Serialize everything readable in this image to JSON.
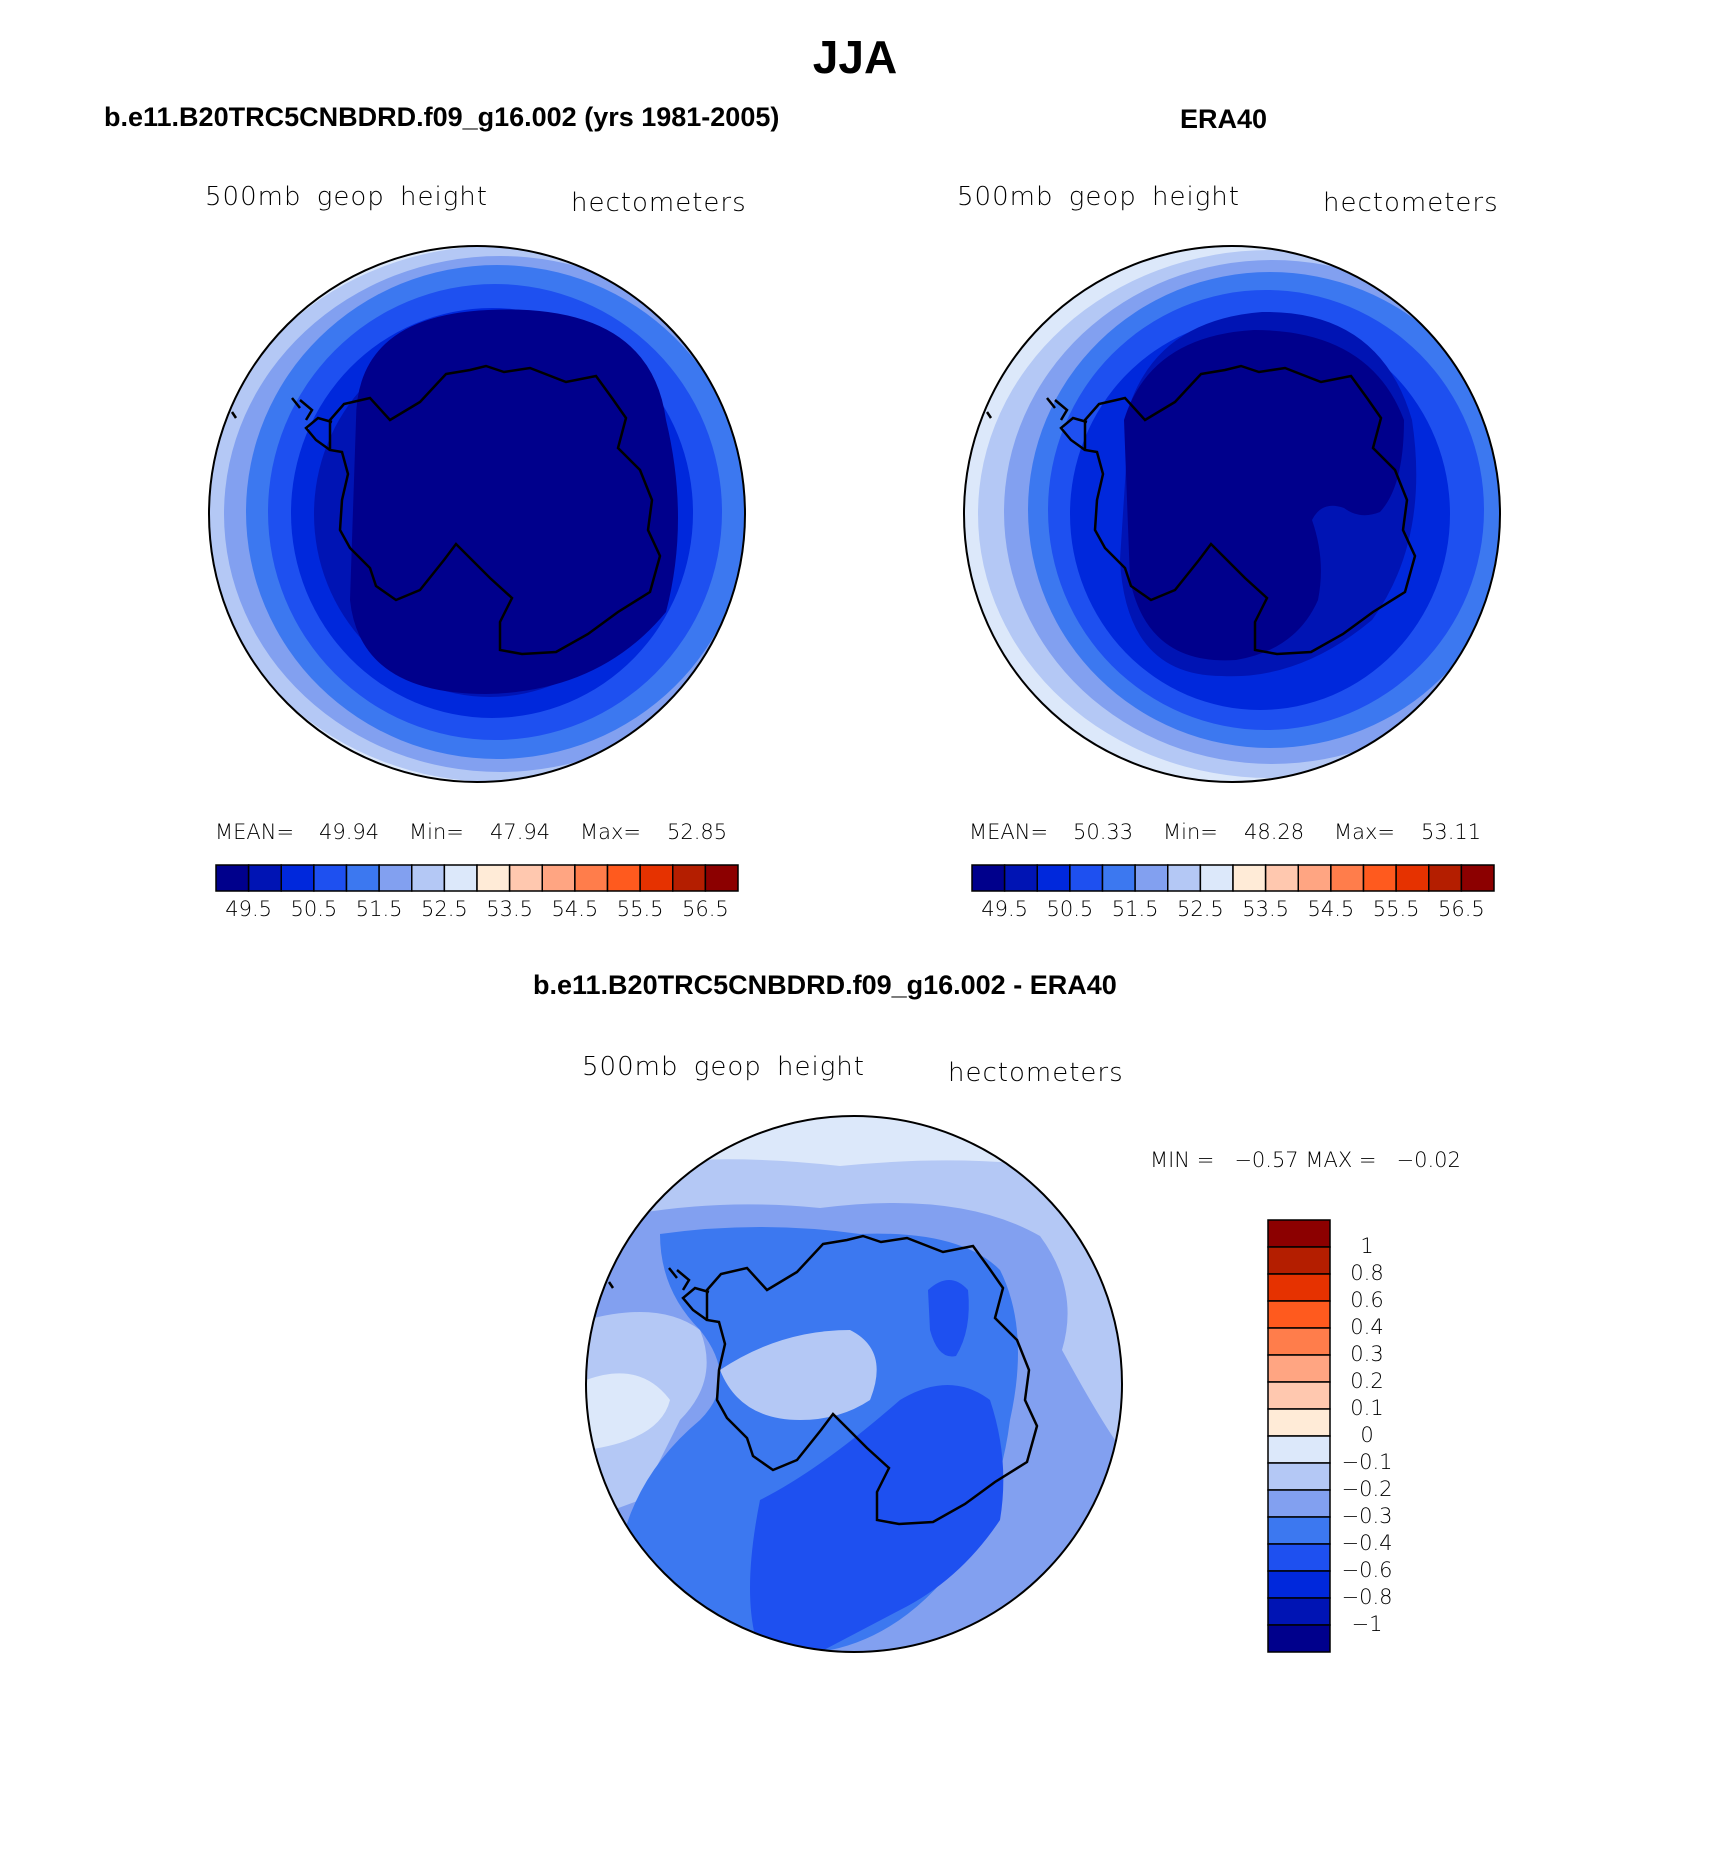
{
  "title": "JJA",
  "colors": {
    "seq": [
      "#00008c",
      "#0014b4",
      "#0028dc",
      "#1e50f0",
      "#3c78f0",
      "#82a0f0",
      "#b4c8f5",
      "#dce8fa",
      "#ffebd7",
      "#ffc8af",
      "#ffa582",
      "#ff7d4b",
      "#ff5a1e",
      "#e63200",
      "#b41e00",
      "#8c0000"
    ],
    "diff": [
      "#00008c",
      "#0014b4",
      "#0028dc",
      "#1e50f0",
      "#3c78f0",
      "#82a0f0",
      "#b4c8f5",
      "#dce8fa",
      "#ffebd7",
      "#ffc8af",
      "#ffa582",
      "#ff7d4b",
      "#ff5a1e",
      "#e63200",
      "#b41e00",
      "#8c0000"
    ]
  },
  "panels": [
    {
      "heading": "b.e11.B20TRC5CNBDRD.f09_g16.002 (yrs 1981-2005)",
      "variable": "500mb geop height",
      "units": "hectometers",
      "stats": {
        "mean_label": "MEAN=",
        "mean": "49.94",
        "min_label": "Min=",
        "min": "47.94",
        "max_label": "Max=",
        "max": "52.85"
      },
      "bar_labels": [
        "49.5",
        "50.5",
        "51.5",
        "52.5",
        "53.5",
        "54.5",
        "55.5",
        "56.5"
      ]
    },
    {
      "heading": "ERA40",
      "variable": "500mb geop height",
      "units": "hectometers",
      "stats": {
        "mean_label": "MEAN=",
        "mean": "50.33",
        "min_label": "Min=",
        "min": "48.28",
        "max_label": "Max=",
        "max": "53.11"
      },
      "bar_labels": [
        "49.5",
        "50.5",
        "51.5",
        "52.5",
        "53.5",
        "54.5",
        "55.5",
        "56.5"
      ]
    },
    {
      "heading": "b.e11.B20TRC5CNBDRD.f09_g16.002 - ERA40",
      "variable": "500mb geop height",
      "units": "hectometers",
      "minmax_text": "MIN =   −0.57 MAX =   −0.02",
      "bar_labels": [
        "1",
        "0.8",
        "0.6",
        "0.4",
        "0.3",
        "0.2",
        "0.1",
        "0",
        "−0.1",
        "−0.2",
        "−0.3",
        "−0.4",
        "−0.6",
        "−0.8",
        "−1"
      ]
    }
  ],
  "chart_data": [
    {
      "type": "heatmap",
      "title": "b.e11.B20TRC5CNBDRD.f09_g16.002 (yrs 1981-2005)",
      "variable": "500mb geop height",
      "units": "hectometers",
      "levels": [
        49.5,
        50.0,
        50.5,
        51.0,
        51.5,
        52.0,
        52.5,
        53.0,
        53.5,
        54.0,
        54.5,
        55.0,
        55.5,
        56.0,
        56.5
      ],
      "mean": 49.94,
      "min": 47.94,
      "max": 52.85
    },
    {
      "type": "heatmap",
      "title": "ERA40",
      "variable": "500mb geop height",
      "units": "hectometers",
      "levels": [
        49.5,
        50.0,
        50.5,
        51.0,
        51.5,
        52.0,
        52.5,
        53.0,
        53.5,
        54.0,
        54.5,
        55.0,
        55.5,
        56.0,
        56.5
      ],
      "mean": 50.33,
      "min": 48.28,
      "max": 53.11
    },
    {
      "type": "heatmap",
      "title": "b.e11.B20TRC5CNBDRD.f09_g16.002 - ERA40",
      "variable": "500mb geop height",
      "units": "hectometers",
      "levels": [
        -1,
        -0.8,
        -0.6,
        -0.4,
        -0.3,
        -0.2,
        -0.1,
        0,
        0.1,
        0.2,
        0.3,
        0.4,
        0.6,
        0.8,
        1
      ],
      "min": -0.57,
      "max": -0.02
    }
  ]
}
